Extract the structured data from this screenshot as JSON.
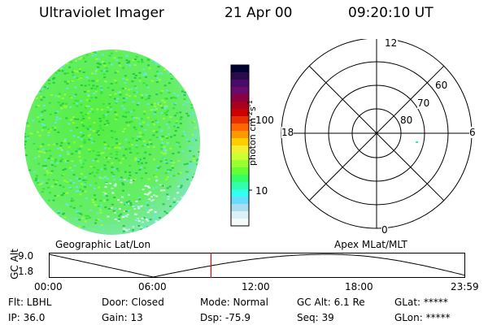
{
  "header": {
    "instrument": "Ultraviolet Imager",
    "date": "21 Apr 00",
    "time": "09:20:10 UT"
  },
  "colorbar": {
    "unit_label": "photon cm",
    "unit_exp1": "-2",
    "unit_mid": "s",
    "unit_exp2": "-1",
    "tick_100": "100",
    "tick_10": "10",
    "colors": [
      "#000033",
      "#2a0a4a",
      "#4a0a6a",
      "#6a0a6a",
      "#8a0040",
      "#aa0020",
      "#cc0000",
      "#e63000",
      "#ff6600",
      "#ff9900",
      "#ffcc00",
      "#f0f030",
      "#ccff33",
      "#99ff33",
      "#66ff33",
      "#33ff66",
      "#33ffaa",
      "#33ffee",
      "#66ddff",
      "#aaddee",
      "#ddf0f5",
      "#f5fafa"
    ]
  },
  "polar_plot": {
    "mlt_labels": {
      "top": "12",
      "left": "18",
      "right": "6",
      "bottom": "0"
    },
    "lat_labels": [
      "60",
      "70",
      "80"
    ]
  },
  "timeline": {
    "left_title": "Geographic Lat/Lon",
    "right_title": "Apex MLat/MLT",
    "axis_label": "GC Alt",
    "y_tick_high": "9.0",
    "y_tick_low": "1.8",
    "x_ticks": [
      "00:00",
      "06:00",
      "12:00",
      "18:00",
      "23:59"
    ],
    "marker_fraction": 0.3893,
    "marker_color": "#ff0000"
  },
  "info": {
    "row1": {
      "flt": "Flt: LBHL",
      "door": "Door: Closed",
      "mode": "Mode: Normal",
      "gc_alt": "GC Alt: 6.1 Re",
      "glat": "GLat: *****"
    },
    "row2": {
      "ip": "IP: 36.0",
      "gain": "Gain: 13",
      "dsp": "Dsp:  -75.9",
      "seq": "Seq: 39",
      "glon": "GLon: *****"
    }
  },
  "colors": {
    "disk_green": "#33e633",
    "disk_lime": "#99ff33",
    "disk_cyan": "#66e6e6",
    "background": "#ffffff"
  }
}
